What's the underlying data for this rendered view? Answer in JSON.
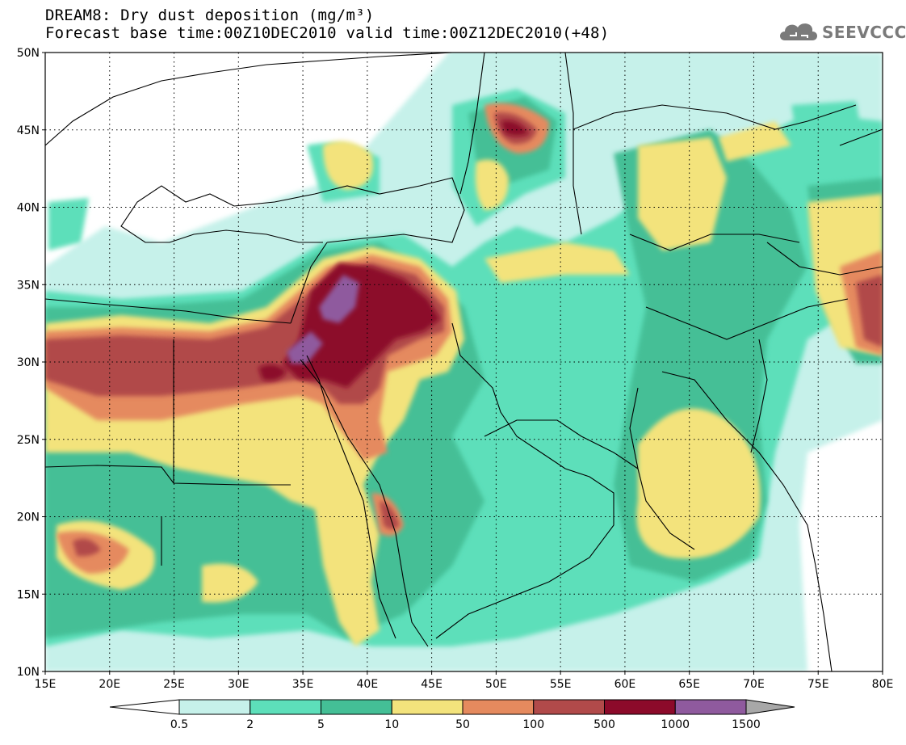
{
  "title_line1": "DREAM8: Dry dust deposition (mg/m³)",
  "title_line2": "Forecast base time:00Z10DEC2010 valid time:00Z12DEC2010(+48)",
  "logo_text": "SEEVCCC",
  "logo_icon": "cloud-icon",
  "lat_ticks": [
    "50N",
    "45N",
    "40N",
    "35N",
    "30N",
    "25N",
    "20N",
    "15N",
    "10N"
  ],
  "lon_ticks": [
    "15E",
    "20E",
    "25E",
    "30E",
    "35E",
    "40E",
    "45E",
    "50E",
    "55E",
    "60E",
    "65E",
    "70E",
    "75E",
    "80E"
  ],
  "lat_values": [
    50,
    45,
    40,
    35,
    30,
    25,
    20,
    15,
    10
  ],
  "lon_values": [
    15,
    20,
    25,
    30,
    35,
    40,
    45,
    50,
    55,
    60,
    65,
    70,
    75,
    80
  ],
  "extent": {
    "lon": [
      15,
      80
    ],
    "lat": [
      10,
      50
    ]
  },
  "colorbar": {
    "labels": [
      "0.5",
      "2",
      "5",
      "10",
      "50",
      "100",
      "500",
      "1000",
      "1500"
    ],
    "colors": [
      "#c6f1ea",
      "#5ddfba",
      "#44bf96",
      "#f3e37c",
      "#e58a5e",
      "#b14a4a",
      "#8c0a2a",
      "#8f5a9e"
    ],
    "under_color": "#ffffff",
    "over_color": "#a8a8a8"
  },
  "grid": "dotted"
}
